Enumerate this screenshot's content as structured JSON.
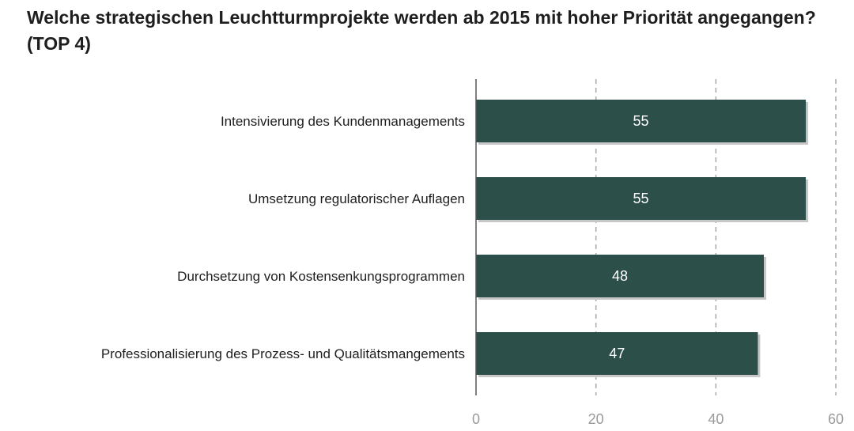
{
  "chart_data": {
    "type": "bar",
    "orientation": "horizontal",
    "title": "Welche strategischen Leuchtturmprojekte werden ab 2015 mit hoher Priorität angegangen? (TOP 4)",
    "categories": [
      "Intensivierung des Kundenmanagements",
      "Umsetzung regulatorischer Auflagen",
      "Durchsetzung von Kostensenkungsprogrammen",
      "Professionalisierung des Prozess- und Qualitätsmangements"
    ],
    "values": [
      55,
      55,
      48,
      47
    ],
    "data_labels": [
      "55",
      "55",
      "48",
      "47"
    ],
    "xlim": [
      0,
      60
    ],
    "x_ticks": [
      0,
      20,
      40,
      60
    ],
    "x_tick_labels": [
      "0",
      "20",
      "40",
      "60"
    ],
    "grid": "vertical-dashed",
    "legend": "none",
    "colors": {
      "bar": "#2d4f4a",
      "bar_shadow": "#c7c7c7",
      "grid": "#a8a8a8",
      "axis": "#555555",
      "tick_label": "#9a9a9a",
      "title": "#1e1e1e"
    }
  }
}
